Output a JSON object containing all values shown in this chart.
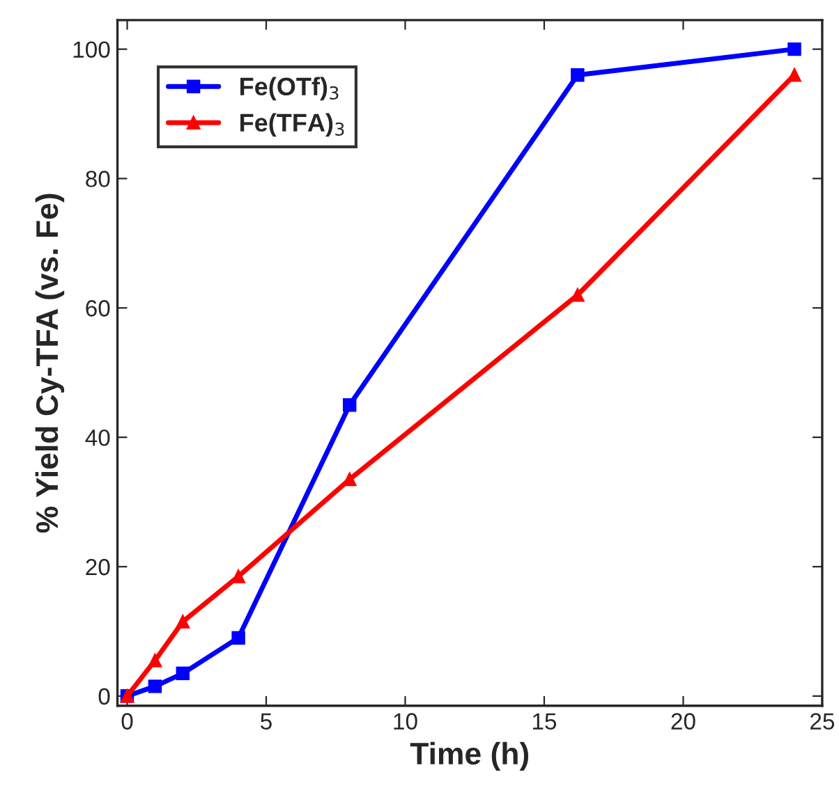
{
  "chart_data": {
    "type": "line",
    "xlabel": "Time (h)",
    "ylabel": "% Yield Cy-TFA (vs. Fe)",
    "series": [
      {
        "name": "Fe(OTf)$_{3}$",
        "color": "#0000ff",
        "marker": "square",
        "x": [
          0,
          1,
          2,
          4,
          8,
          16.2,
          24
        ],
        "values": [
          0,
          1.5,
          3.5,
          9,
          45,
          96,
          100
        ]
      },
      {
        "name": "Fe(TFA)$_{3}$",
        "color": "#ff0000",
        "marker": "triangle",
        "x": [
          0,
          1,
          2,
          4,
          8,
          16.2,
          24
        ],
        "values": [
          0,
          5.5,
          11.5,
          18.5,
          33.5,
          62,
          96
        ]
      }
    ],
    "xlim": [
      -0.35,
      25
    ],
    "xticks": [
      0,
      5,
      10,
      15,
      20,
      25
    ],
    "ylim": [
      -1.5,
      104.5
    ],
    "yticks": [
      0,
      20,
      40,
      60,
      80,
      100
    ],
    "grid": false,
    "legend": "top left",
    "line_style": "solid"
  }
}
